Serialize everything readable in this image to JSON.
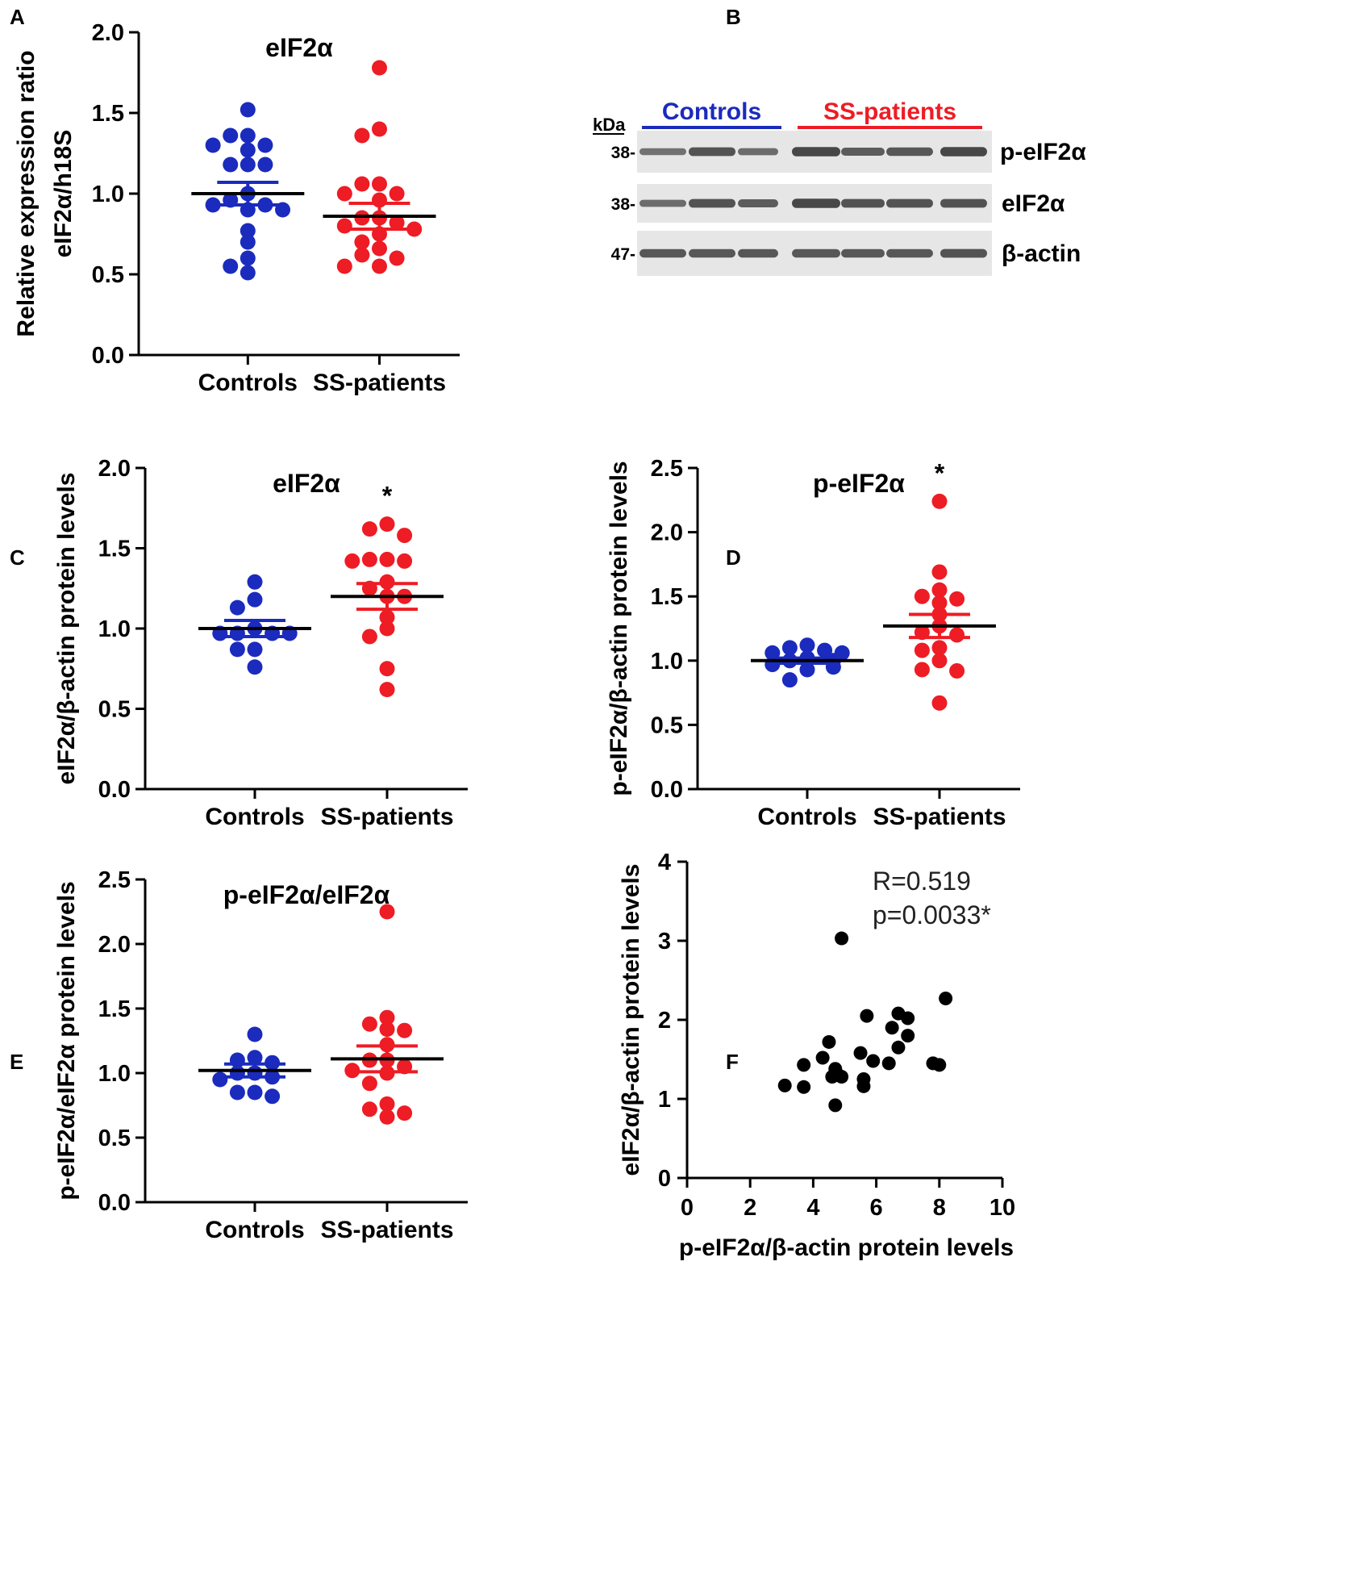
{
  "figure": {
    "panel_letters": [
      "A",
      "B",
      "C",
      "D",
      "E",
      "F"
    ],
    "colors": {
      "controls": "#1b2bbd",
      "patients": "#ee1c24",
      "scatter": "#000000",
      "blot_bg": "#e6e6e6",
      "band": "#3a3a3a"
    }
  },
  "chart_data": [
    {
      "panel": "A",
      "type": "scatter",
      "title": "eIF2α",
      "ylabel": [
        "Relative expression ratio",
        "eIF2α/h18S"
      ],
      "xlabel": "",
      "categories": [
        "Controls",
        "SS-patients"
      ],
      "ylim": [
        0,
        2.0
      ],
      "yticks": [
        "0.0",
        "0.5",
        "1.0",
        "1.5",
        "2.0"
      ],
      "significance": "",
      "series": [
        {
          "name": "Controls",
          "color": "controls",
          "mean": 1.0,
          "sem": 0.07,
          "values": [
            1.52,
            1.36,
            1.36,
            1.3,
            1.3,
            1.27,
            1.18,
            1.18,
            1.18,
            1.0,
            0.96,
            0.93,
            0.93,
            0.9,
            0.9,
            0.77,
            0.7,
            0.6,
            0.55,
            0.51
          ]
        },
        {
          "name": "SS-patients",
          "color": "patients",
          "mean": 0.86,
          "sem": 0.08,
          "values": [
            1.78,
            1.4,
            1.36,
            1.06,
            1.06,
            1.0,
            1.0,
            0.96,
            0.85,
            0.85,
            0.82,
            0.8,
            0.78,
            0.75,
            0.7,
            0.66,
            0.62,
            0.6,
            0.55,
            0.55
          ]
        }
      ]
    },
    {
      "panel": "C",
      "type": "scatter",
      "title": "eIF2α",
      "ylabel": [
        "eIF2α/β-actin protein levels"
      ],
      "xlabel": "",
      "categories": [
        "Controls",
        "SS-patients"
      ],
      "ylim": [
        0,
        2.0
      ],
      "yticks": [
        "0.0",
        "0.5",
        "1.0",
        "1.5",
        "2.0"
      ],
      "significance": "*",
      "series": [
        {
          "name": "Controls",
          "color": "controls",
          "mean": 1.0,
          "sem": 0.05,
          "values": [
            1.29,
            1.18,
            1.13,
            1.0,
            0.97,
            0.97,
            0.97,
            0.97,
            0.87,
            0.87,
            0.76
          ]
        },
        {
          "name": "SS-patients",
          "color": "patients",
          "mean": 1.2,
          "sem": 0.08,
          "values": [
            1.65,
            1.62,
            1.58,
            1.43,
            1.43,
            1.42,
            1.42,
            1.29,
            1.25,
            1.2,
            1.2,
            1.07,
            1.0,
            0.95,
            0.75,
            0.62
          ]
        }
      ]
    },
    {
      "panel": "D",
      "type": "scatter",
      "title": "p-eIF2α",
      "ylabel": [
        "p-eIF2α/β-actin protein levels"
      ],
      "xlabel": "",
      "categories": [
        "Controls",
        "SS-patients"
      ],
      "ylim": [
        0,
        2.5
      ],
      "yticks": [
        "0.0",
        "0.5",
        "1.0",
        "1.5",
        "2.0",
        "2.5"
      ],
      "significance": "*",
      "series": [
        {
          "name": "Controls",
          "color": "controls",
          "mean": 1.0,
          "sem": 0.02,
          "values": [
            1.12,
            1.1,
            1.08,
            1.06,
            1.06,
            1.02,
            1.0,
            1.0,
            0.97,
            0.95,
            0.93,
            0.85
          ]
        },
        {
          "name": "SS-patients",
          "color": "patients",
          "mean": 1.27,
          "sem": 0.09,
          "values": [
            2.24,
            1.69,
            1.55,
            1.5,
            1.48,
            1.45,
            1.36,
            1.27,
            1.22,
            1.2,
            1.1,
            1.08,
            1.0,
            0.93,
            0.92,
            0.67
          ]
        }
      ]
    },
    {
      "panel": "E",
      "type": "scatter",
      "title": "p-eIF2α/eIF2α",
      "ylabel": [
        "p-eIF2α/eIF2α protein levels"
      ],
      "xlabel": "",
      "categories": [
        "Controls",
        "SS-patients"
      ],
      "ylim": [
        0,
        2.5
      ],
      "yticks": [
        "0.0",
        "0.5",
        "1.0",
        "1.5",
        "2.0",
        "2.5"
      ],
      "significance": "",
      "series": [
        {
          "name": "Controls",
          "color": "controls",
          "mean": 1.02,
          "sem": 0.05,
          "values": [
            1.3,
            1.12,
            1.1,
            1.08,
            1.0,
            1.0,
            0.97,
            0.95,
            0.85,
            0.85,
            0.82
          ]
        },
        {
          "name": "SS-patients",
          "color": "patients",
          "mean": 1.11,
          "sem": 0.1,
          "values": [
            2.25,
            1.43,
            1.38,
            1.34,
            1.33,
            1.22,
            1.1,
            1.1,
            1.05,
            1.02,
            1.0,
            0.92,
            0.76,
            0.72,
            0.69,
            0.66
          ]
        }
      ]
    },
    {
      "panel": "F",
      "type": "scatter",
      "title": "",
      "ylabel": [
        "eIF2α/β-actin protein levels"
      ],
      "xlabel": "p-eIF2α/β-actin protein levels",
      "xlim": [
        0,
        10
      ],
      "ylim": [
        0,
        4
      ],
      "xticks": [
        "0",
        "2",
        "4",
        "6",
        "8",
        "10"
      ],
      "yticks": [
        "0",
        "1",
        "2",
        "3",
        "4"
      ],
      "annotations": [
        "R=0.519",
        "p=0.0033*"
      ],
      "points": [
        {
          "x": 3.1,
          "y": 1.17
        },
        {
          "x": 3.7,
          "y": 1.15
        },
        {
          "x": 3.7,
          "y": 1.43
        },
        {
          "x": 4.3,
          "y": 1.52
        },
        {
          "x": 4.5,
          "y": 1.72
        },
        {
          "x": 4.6,
          "y": 1.28
        },
        {
          "x": 4.7,
          "y": 1.38
        },
        {
          "x": 4.8,
          "y": 1.3
        },
        {
          "x": 4.7,
          "y": 0.92
        },
        {
          "x": 4.9,
          "y": 1.28
        },
        {
          "x": 4.9,
          "y": 3.03
        },
        {
          "x": 5.5,
          "y": 1.58
        },
        {
          "x": 5.6,
          "y": 1.25
        },
        {
          "x": 5.6,
          "y": 1.16
        },
        {
          "x": 5.7,
          "y": 2.05
        },
        {
          "x": 5.9,
          "y": 1.48
        },
        {
          "x": 6.4,
          "y": 1.45
        },
        {
          "x": 6.5,
          "y": 1.9
        },
        {
          "x": 6.7,
          "y": 1.65
        },
        {
          "x": 6.7,
          "y": 2.08
        },
        {
          "x": 7.0,
          "y": 2.02
        },
        {
          "x": 7.0,
          "y": 1.8
        },
        {
          "x": 7.8,
          "y": 1.45
        },
        {
          "x": 8.0,
          "y": 1.43
        },
        {
          "x": 8.2,
          "y": 2.27
        }
      ]
    }
  ],
  "blot": {
    "panel": "B",
    "unit_label": "kDa",
    "group_labels": [
      "Controls",
      "SS-patients"
    ],
    "lane_groups": [
      "controls",
      "controls",
      "controls",
      "patients",
      "patients",
      "patients",
      "patients"
    ],
    "rows": [
      {
        "mw": "38-",
        "label": "p-eIF2α",
        "intensities": [
          0.55,
          0.85,
          0.6,
          0.95,
          0.75,
          0.8,
          0.95
        ]
      },
      {
        "mw": "38-",
        "label": "eIF2α",
        "intensities": [
          0.6,
          0.85,
          0.75,
          0.95,
          0.85,
          0.85,
          0.85
        ]
      },
      {
        "mw": "47-",
        "label": "β-actin",
        "intensities": [
          0.8,
          0.8,
          0.8,
          0.8,
          0.8,
          0.8,
          0.85
        ]
      }
    ]
  }
}
